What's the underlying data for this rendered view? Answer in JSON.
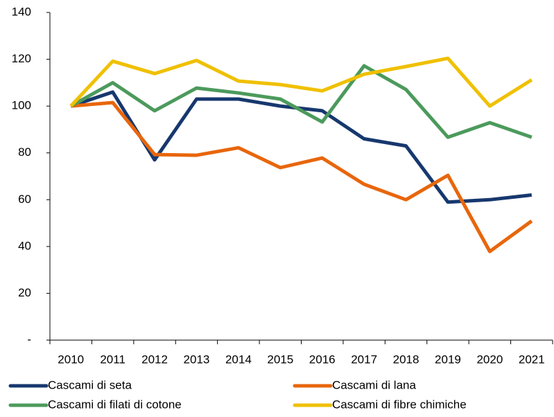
{
  "chart_data": {
    "type": "line",
    "categories": [
      "2010",
      "2011",
      "2012",
      "2013",
      "2014",
      "2015",
      "2016",
      "2017",
      "2018",
      "2019",
      "2020",
      "2021"
    ],
    "series": [
      {
        "name": "Cascami di seta",
        "color": "#17386e",
        "values": [
          100,
          106,
          77,
          103,
          103,
          100,
          98,
          86,
          83,
          59,
          60,
          62
        ]
      },
      {
        "name": "Cascami di lana",
        "color": "#e8660c",
        "values": [
          100,
          101.5,
          79.3,
          79,
          82.2,
          73.7,
          77.8,
          66.6,
          60,
          70.4,
          37.9,
          50.9
        ]
      },
      {
        "name": "Cascami di filati di cotone",
        "color": "#4c9a5c",
        "values": [
          100,
          110,
          98,
          107.7,
          105.6,
          103,
          93.2,
          117.2,
          107.1,
          86.7,
          92.9,
          86.7
        ]
      },
      {
        "name": "Cascami di fibre chimiche",
        "color": "#f0c000",
        "values": [
          100,
          119.2,
          113.9,
          119.5,
          110.7,
          109.2,
          106.5,
          113.6,
          116.9,
          120.4,
          100,
          111.2
        ]
      }
    ],
    "ylim": [
      0,
      140
    ],
    "yticks": [
      {
        "value": 0,
        "label": "-"
      },
      20,
      40,
      60,
      80,
      100,
      120,
      140
    ],
    "grid": false,
    "legend": "bottom"
  }
}
